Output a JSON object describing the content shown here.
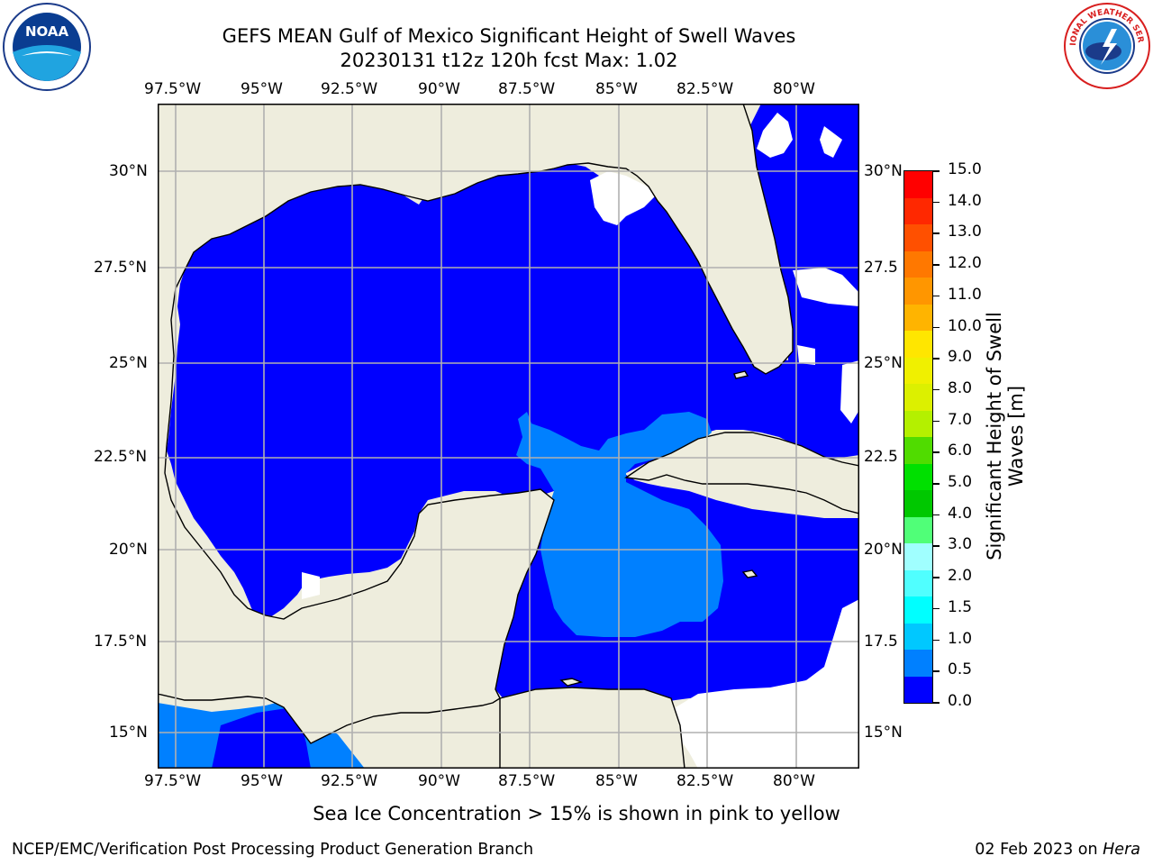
{
  "header": {
    "title_line1": "GEFS MEAN Gulf of Mexico Significant Height of Swell Waves",
    "title_line2": "20230131 t12z 120h fcst   Max: 1.02"
  },
  "logos": {
    "left": {
      "icon": "noaa-logo",
      "text": "NOAA"
    },
    "right": {
      "icon": "national-weather-service-logo",
      "text": "NATIONAL WEATHER SERVICE"
    }
  },
  "map": {
    "lon_labels": [
      "97.5°W",
      "95°W",
      "92.5°W",
      "90°W",
      "87.5°W",
      "85°W",
      "82.5°W",
      "80°W"
    ],
    "lat_labels_left": [
      "30°N",
      "27.5°N",
      "25°N",
      "22.5°N",
      "20°N",
      "17.5°N",
      "15°N"
    ],
    "lat_labels_right": [
      "30°N",
      "27.5",
      "25°N",
      "22.5",
      "20°N",
      "17.5",
      "15°N"
    ],
    "colors": {
      "land": "#eeeddd",
      "ocean_0_0_5": "#0000ff",
      "ocean_0_5_1_0": "#0080ff",
      "no_data": "#ffffff",
      "grid": "#b0b0b0"
    }
  },
  "colorbar": {
    "label": "Significant Height of Swell Waves [m]",
    "tick_labels": [
      "15.0",
      "14.0",
      "13.0",
      "12.0",
      "11.0",
      "10.0",
      "9.0",
      "8.0",
      "7.0",
      "6.0",
      "5.0",
      "4.0",
      "3.0",
      "2.0",
      "1.5",
      "1.0",
      "0.5",
      "0.0"
    ],
    "colors_top_to_bottom": [
      "#ff0000",
      "#ff2800",
      "#ff5000",
      "#ff7800",
      "#ff9600",
      "#ffb400",
      "#ffe600",
      "#f0f000",
      "#dcf000",
      "#b4f000",
      "#50dc00",
      "#00e000",
      "#00c800",
      "#50ff78",
      "#a0ffff",
      "#50ffff",
      "#00ffff",
      "#00c8ff",
      "#0080ff",
      "#0000ff"
    ]
  },
  "note": "Sea Ice Concentration > 15% is shown in pink to yellow",
  "footer": {
    "left": "NCEP/EMC/Verification Post Processing Product Generation Branch",
    "right_prefix": "02 Feb 2023 on ",
    "right_host": "Hera"
  }
}
